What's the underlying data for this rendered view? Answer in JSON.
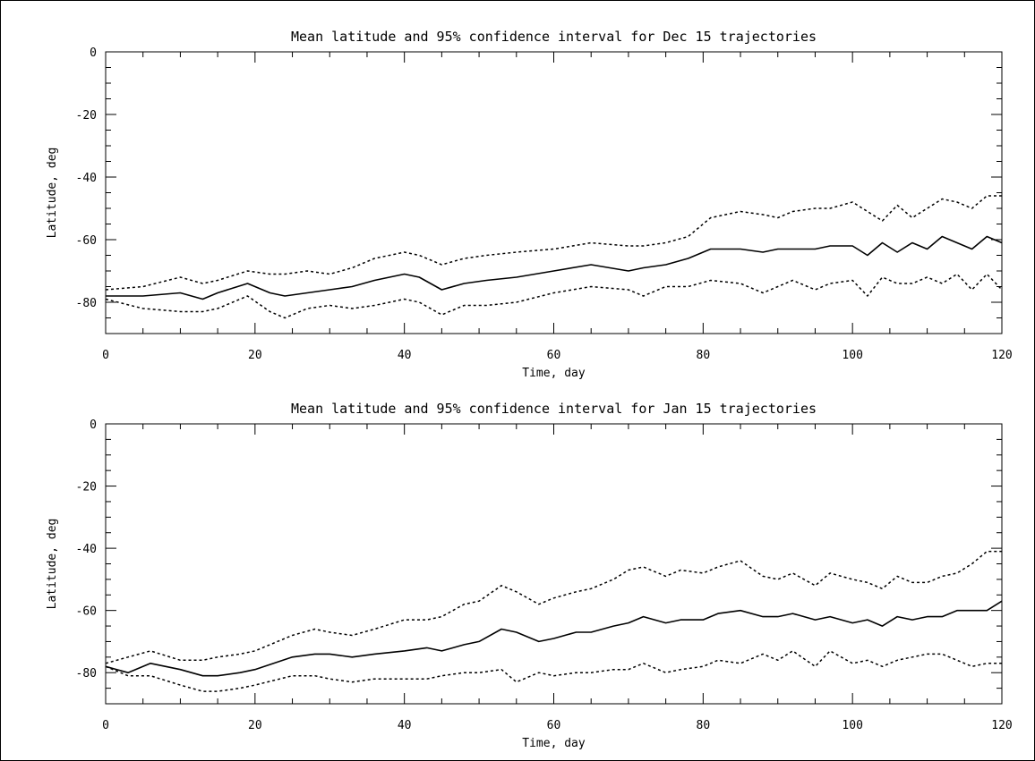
{
  "chart_data": [
    {
      "type": "line",
      "title": "Mean latitude and 95% confidence interval for Dec 15 trajectories",
      "xlabel": "Time, day",
      "ylabel": "Latitude, deg",
      "xlim": [
        0,
        120
      ],
      "ylim": [
        -90,
        0
      ],
      "xticks": [
        0,
        20,
        40,
        60,
        80,
        100,
        120
      ],
      "yticks": [
        0,
        -20,
        -40,
        -60,
        -80
      ],
      "x": [
        0,
        5,
        10,
        13,
        15,
        19,
        22,
        24,
        27,
        30,
        33,
        36,
        40,
        42,
        45,
        48,
        51,
        55,
        60,
        65,
        70,
        72,
        75,
        78,
        81,
        85,
        88,
        90,
        92,
        95,
        97,
        100,
        102,
        104,
        106,
        108,
        110,
        112,
        114,
        116,
        118,
        120
      ],
      "series": [
        {
          "style": "dotted",
          "values": [
            -76,
            -75,
            -72,
            -74,
            -73,
            -70,
            -71,
            -71,
            -70,
            -71,
            -69,
            -66,
            -64,
            -65,
            -68,
            -66,
            -65,
            -64,
            -63,
            -61,
            -62,
            -62,
            -61,
            -59,
            -53,
            -51,
            -52,
            -53,
            -51,
            -50,
            -50,
            -48,
            -51,
            -54,
            -49,
            -53,
            -50,
            -47,
            -48,
            -50,
            -46,
            -46
          ]
        },
        {
          "style": "solid",
          "values": [
            -78,
            -78,
            -77,
            -79,
            -77,
            -74,
            -77,
            -78,
            -77,
            -76,
            -75,
            -73,
            -71,
            -72,
            -76,
            -74,
            -73,
            -72,
            -70,
            -68,
            -70,
            -69,
            -68,
            -66,
            -63,
            -63,
            -64,
            -63,
            -63,
            -63,
            -62,
            -62,
            -65,
            -61,
            -64,
            -61,
            -63,
            -59,
            -61,
            -63,
            -59,
            -61
          ]
        },
        {
          "style": "dotted",
          "values": [
            -79,
            -82,
            -83,
            -83,
            -82,
            -78,
            -83,
            -85,
            -82,
            -81,
            -82,
            -81,
            -79,
            -80,
            -84,
            -81,
            -81,
            -80,
            -77,
            -75,
            -76,
            -78,
            -75,
            -75,
            -73,
            -74,
            -77,
            -75,
            -73,
            -76,
            -74,
            -73,
            -78,
            -72,
            -74,
            -74,
            -72,
            -74,
            -71,
            -76,
            -71,
            -76
          ]
        }
      ]
    },
    {
      "type": "line",
      "title": "Mean latitude and 95% confidence interval for Jan 15 trajectories",
      "xlabel": "Time, day",
      "ylabel": "Latitude, deg",
      "xlim": [
        0,
        120
      ],
      "ylim": [
        -90,
        0
      ],
      "xticks": [
        0,
        20,
        40,
        60,
        80,
        100,
        120
      ],
      "yticks": [
        0,
        -20,
        -40,
        -60,
        -80
      ],
      "x": [
        0,
        3,
        6,
        10,
        13,
        15,
        18,
        20,
        25,
        28,
        30,
        33,
        36,
        40,
        43,
        45,
        48,
        50,
        53,
        55,
        58,
        60,
        63,
        65,
        68,
        70,
        72,
        75,
        77,
        80,
        82,
        85,
        88,
        90,
        92,
        95,
        97,
        100,
        102,
        104,
        106,
        108,
        110,
        112,
        114,
        116,
        118,
        120
      ],
      "series": [
        {
          "style": "dotted",
          "values": [
            -77,
            -75,
            -73,
            -76,
            -76,
            -75,
            -74,
            -73,
            -68,
            -66,
            -67,
            -68,
            -66,
            -63,
            -63,
            -62,
            -58,
            -57,
            -52,
            -54,
            -58,
            -56,
            -54,
            -53,
            -50,
            -47,
            -46,
            -49,
            -47,
            -48,
            -46,
            -44,
            -49,
            -50,
            -48,
            -52,
            -48,
            -50,
            -51,
            -53,
            -49,
            -51,
            -51,
            -49,
            -48,
            -45,
            -41,
            -41
          ]
        },
        {
          "style": "solid",
          "values": [
            -78,
            -80,
            -77,
            -79,
            -81,
            -81,
            -80,
            -79,
            -75,
            -74,
            -74,
            -75,
            -74,
            -73,
            -72,
            -73,
            -71,
            -70,
            -66,
            -67,
            -70,
            -69,
            -67,
            -67,
            -65,
            -64,
            -62,
            -64,
            -63,
            -63,
            -61,
            -60,
            -62,
            -62,
            -61,
            -63,
            -62,
            -64,
            -63,
            -65,
            -62,
            -63,
            -62,
            -62,
            -60,
            -60,
            -60,
            -57
          ]
        },
        {
          "style": "dotted",
          "values": [
            -78,
            -81,
            -81,
            -84,
            -86,
            -86,
            -85,
            -84,
            -81,
            -81,
            -82,
            -83,
            -82,
            -82,
            -82,
            -81,
            -80,
            -80,
            -79,
            -83,
            -80,
            -81,
            -80,
            -80,
            -79,
            -79,
            -77,
            -80,
            -79,
            -78,
            -76,
            -77,
            -74,
            -76,
            -73,
            -78,
            -73,
            -77,
            -76,
            -78,
            -76,
            -75,
            -74,
            -74,
            -76,
            -78,
            -77,
            -77
          ]
        }
      ]
    }
  ]
}
